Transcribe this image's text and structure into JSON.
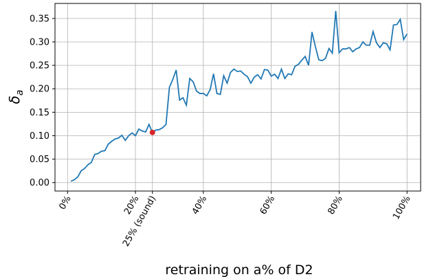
{
  "chart_data": {
    "type": "line",
    "x_label": "retraining on a% of D2",
    "y_label": {
      "symbol": "δ",
      "subscript": "a"
    },
    "x": [
      1,
      2,
      3,
      4,
      5,
      6,
      7,
      8,
      9,
      10,
      11,
      12,
      13,
      14,
      15,
      16,
      17,
      18,
      19,
      20,
      21,
      22,
      23,
      24,
      25,
      26,
      27,
      28,
      29,
      30,
      31,
      32,
      33,
      34,
      35,
      36,
      37,
      38,
      39,
      40,
      41,
      42,
      43,
      44,
      45,
      46,
      47,
      48,
      49,
      50,
      51,
      52,
      53,
      54,
      55,
      56,
      57,
      58,
      59,
      60,
      61,
      62,
      63,
      64,
      65,
      66,
      67,
      68,
      69,
      70,
      71,
      72,
      73,
      74,
      75,
      76,
      77,
      78,
      79,
      80,
      81,
      82,
      83,
      84,
      85,
      86,
      87,
      88,
      89,
      90,
      91,
      92,
      93,
      94,
      95,
      96,
      97,
      98,
      99,
      100
    ],
    "series": [
      {
        "color": "#1f77b4",
        "values": [
          0.003,
          0.006,
          0.012,
          0.025,
          0.03,
          0.038,
          0.043,
          0.06,
          0.062,
          0.067,
          0.068,
          0.082,
          0.088,
          0.093,
          0.095,
          0.101,
          0.09,
          0.1,
          0.106,
          0.1,
          0.114,
          0.11,
          0.108,
          0.124,
          0.107,
          0.112,
          0.113,
          0.117,
          0.124,
          0.203,
          0.22,
          0.24,
          0.176,
          0.181,
          0.165,
          0.222,
          0.215,
          0.195,
          0.19,
          0.19,
          0.185,
          0.198,
          0.232,
          0.19,
          0.188,
          0.228,
          0.212,
          0.235,
          0.242,
          0.237,
          0.238,
          0.231,
          0.226,
          0.212,
          0.225,
          0.23,
          0.221,
          0.241,
          0.24,
          0.227,
          0.231,
          0.222,
          0.242,
          0.222,
          0.232,
          0.23,
          0.248,
          0.252,
          0.261,
          0.269,
          0.25,
          0.321,
          0.29,
          0.262,
          0.26,
          0.265,
          0.286,
          0.276,
          0.366,
          0.277,
          0.285,
          0.285,
          0.288,
          0.279,
          0.285,
          0.288,
          0.3,
          0.293,
          0.293,
          0.322,
          0.298,
          0.288,
          0.298,
          0.296,
          0.283,
          0.336,
          0.337,
          0.348,
          0.305,
          0.317
        ]
      }
    ],
    "highlight": {
      "x": 25,
      "y": 0.107,
      "color": "#d62728"
    },
    "xlim": [
      -3.7,
      104
    ],
    "ylim": [
      -0.018,
      0.382
    ],
    "xticks": [
      {
        "value": 0,
        "label": "0%"
      },
      {
        "value": 20,
        "label": "20%"
      },
      {
        "value": 25,
        "label": "25% (sound)"
      },
      {
        "value": 40,
        "label": "40%"
      },
      {
        "value": 60,
        "label": "60%"
      },
      {
        "value": 80,
        "label": "80%"
      },
      {
        "value": 100,
        "label": "100%"
      }
    ],
    "yticks": [
      {
        "value": 0,
        "label": "0.00"
      },
      {
        "value": 0.05,
        "label": "0.05"
      },
      {
        "value": 0.1,
        "label": "0.10"
      },
      {
        "value": 0.15,
        "label": "0.15"
      },
      {
        "value": 0.2,
        "label": "0.20"
      },
      {
        "value": 0.25,
        "label": "0.25"
      },
      {
        "value": 0.3,
        "label": "0.30"
      },
      {
        "value": 0.35,
        "label": "0.35"
      }
    ],
    "grid": true
  }
}
